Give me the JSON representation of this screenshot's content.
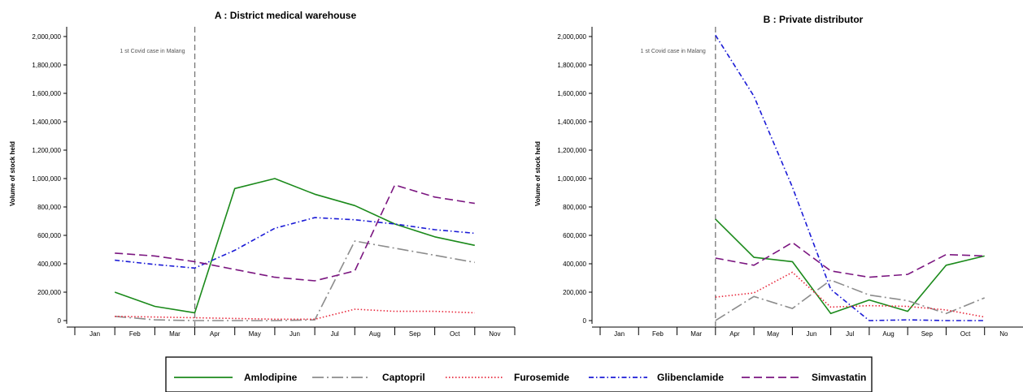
{
  "chart_data": [
    {
      "type": "line",
      "title": "A : District medical warehouse",
      "ylabel": "Volume of stock held",
      "xlabel": "",
      "categories": [
        "Jan",
        "Feb",
        "Mar",
        "Apr",
        "May",
        "Jun",
        "Jul",
        "Aug",
        "Sep",
        "Oct",
        "Nov"
      ],
      "y_ticks": [
        "0",
        "200,000",
        "400,000",
        "600,000",
        "800,000",
        "1,000,000",
        "1,200,000",
        "1,400,000",
        "1,600,000",
        "1,800,000",
        "2,000,000"
      ],
      "ylim": [
        0,
        2000000
      ],
      "grid": false,
      "annotation": {
        "text": "1 st Covid case in Malang",
        "x": "Mar"
      },
      "series": [
        {
          "name": "Amlodipine",
          "values": [
            null,
            200000,
            100000,
            55000,
            930000,
            1000000,
            890000,
            810000,
            680000,
            590000,
            530000
          ]
        },
        {
          "name": "Captopril",
          "values": [
            null,
            30000,
            5000,
            0,
            0,
            0,
            5000,
            560000,
            510000,
            460000,
            410000
          ]
        },
        {
          "name": "Furosemide",
          "values": [
            null,
            30000,
            25000,
            20000,
            15000,
            10000,
            10000,
            80000,
            65000,
            65000,
            55000
          ]
        },
        {
          "name": "Glibenclamide",
          "values": [
            null,
            425000,
            395000,
            370000,
            495000,
            650000,
            725000,
            710000,
            680000,
            640000,
            615000
          ]
        },
        {
          "name": "Simvastatin",
          "values": [
            null,
            475000,
            455000,
            415000,
            360000,
            305000,
            280000,
            350000,
            955000,
            870000,
            825000
          ]
        }
      ]
    },
    {
      "type": "line",
      "title": "B : Private distributor",
      "ylabel": "Volume of stock held",
      "xlabel": "",
      "categories": [
        "Jan",
        "Feb",
        "Mar",
        "Apr",
        "May",
        "Jun",
        "Jul",
        "Aug",
        "Sep",
        "Oct",
        "No"
      ],
      "y_ticks": [
        "0",
        "200,000",
        "400,000",
        "600,000",
        "800,000",
        "1,000,000",
        "1,200,000",
        "1,400,000",
        "1,600,000",
        "1,800,000",
        "2,000,000"
      ],
      "ylim": [
        0,
        2000000
      ],
      "grid": false,
      "annotation": {
        "text": "1 st Covid case in Malang",
        "x": "Mar"
      },
      "series": [
        {
          "name": "Amlodipine",
          "values": [
            null,
            null,
            null,
            715000,
            445000,
            415000,
            50000,
            145000,
            65000,
            390000,
            455000
          ]
        },
        {
          "name": "Captopril",
          "values": [
            null,
            null,
            null,
            0,
            170000,
            85000,
            285000,
            180000,
            140000,
            50000,
            160000
          ]
        },
        {
          "name": "Furosemide",
          "values": [
            null,
            null,
            null,
            165000,
            195000,
            340000,
            95000,
            105000,
            100000,
            75000,
            25000
          ]
        },
        {
          "name": "Glibenclamide",
          "values": [
            null,
            null,
            null,
            2010000,
            1580000,
            940000,
            220000,
            0,
            5000,
            0,
            0
          ]
        },
        {
          "name": "Simvastatin",
          "values": [
            null,
            null,
            null,
            440000,
            390000,
            550000,
            350000,
            305000,
            325000,
            465000,
            455000
          ]
        }
      ]
    }
  ],
  "series_colors": {
    "Amlodipine": "#1b8a1b",
    "Captopril": "#8c8c8c",
    "Furosemide": "#e8283c",
    "Glibenclamide": "#1a1ad6",
    "Simvastatin": "#7b1680"
  },
  "legend": {
    "placement": "bottom",
    "items": [
      {
        "name": "Amlodipine",
        "icon": "solid-line"
      },
      {
        "name": "Captopril",
        "icon": "dash-dot-line"
      },
      {
        "name": "Furosemide",
        "icon": "dotted-line"
      },
      {
        "name": "Glibenclamide",
        "icon": "dash-dot-line"
      },
      {
        "name": "Simvastatin",
        "icon": "dashed-line"
      }
    ]
  }
}
